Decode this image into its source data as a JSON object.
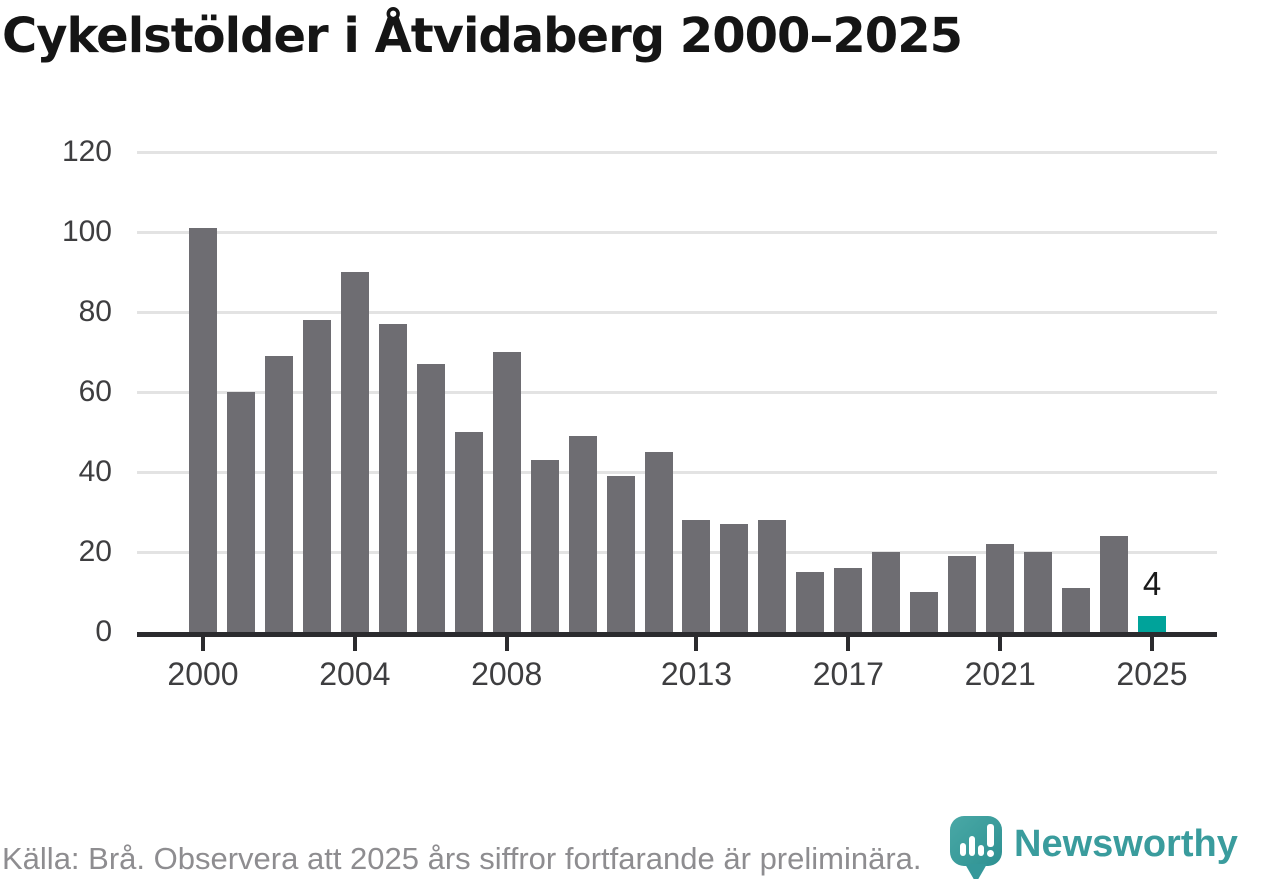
{
  "title": "Cykelstölder i Åtvidaberg 2000–2025",
  "chart_data": {
    "type": "bar",
    "x": [
      2000,
      2001,
      2002,
      2003,
      2004,
      2005,
      2006,
      2007,
      2008,
      2009,
      2010,
      2011,
      2012,
      2013,
      2014,
      2015,
      2016,
      2017,
      2018,
      2019,
      2020,
      2021,
      2022,
      2023,
      2024,
      2025
    ],
    "values": [
      101,
      60,
      69,
      78,
      90,
      77,
      67,
      50,
      70,
      43,
      49,
      39,
      45,
      28,
      27,
      28,
      15,
      16,
      20,
      10,
      19,
      22,
      20,
      11,
      24,
      4
    ],
    "title": "Cykelstölder i Åtvidaberg 2000–2025",
    "xlabel": "",
    "ylabel": "",
    "ylim": [
      0,
      120
    ],
    "y_ticks": [
      0,
      20,
      40,
      60,
      80,
      100,
      120
    ],
    "x_tick_years": [
      "2000",
      "2004",
      "2008",
      "2013",
      "2017",
      "2021",
      "2025"
    ],
    "grid": true,
    "legend": "none",
    "highlight_index": 25,
    "highlight_label": "4",
    "colors": {
      "bar": "#6E6D72",
      "highlight": "#00A39A",
      "grid": "#E3E3E3",
      "axis": "#2B2B2E",
      "tick_label": "#3E3E40",
      "title": "#151515"
    }
  },
  "footer": {
    "source_note": "Källa: Brå. Observera att 2025 års siffror fortfarande är preliminära.",
    "brand": "Newsworthy",
    "brand_color": "#3A9C9D"
  }
}
